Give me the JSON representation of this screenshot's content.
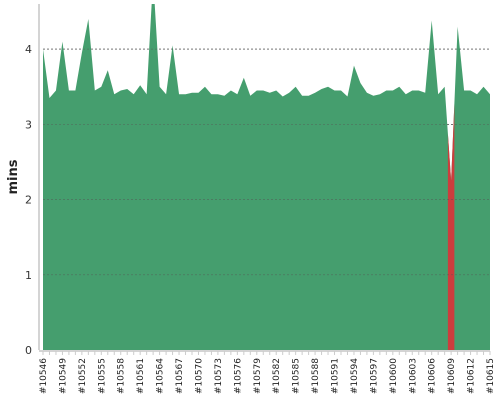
{
  "chart_data": {
    "type": "area",
    "ylabel": "mins",
    "xlabel": "",
    "title": "",
    "ylim": [
      0,
      4.6
    ],
    "y_ticks": [
      0,
      1,
      2,
      3,
      4
    ],
    "grid": "horizontal dashed",
    "build_start": 10546,
    "build_end": 10615,
    "x_tick_labels": [
      "#10546",
      "#10549",
      "#10552",
      "#10555",
      "#10558",
      "#10561",
      "#10564",
      "#10567",
      "#10570",
      "#10573",
      "#10576",
      "#10579",
      "#10582",
      "#10585",
      "#10588",
      "#10591",
      "#10594",
      "#10597",
      "#10600",
      "#10603",
      "#10606",
      "#10609",
      "#10612",
      "#10615"
    ],
    "values": [
      4.0,
      3.35,
      3.45,
      4.1,
      3.45,
      3.45,
      3.95,
      4.4,
      3.45,
      3.5,
      3.72,
      3.4,
      3.45,
      3.47,
      3.4,
      3.52,
      3.4,
      4.95,
      3.5,
      3.4,
      4.05,
      3.4,
      3.4,
      3.42,
      3.42,
      3.5,
      3.4,
      3.4,
      3.38,
      3.45,
      3.4,
      3.62,
      3.38,
      3.45,
      3.45,
      3.42,
      3.45,
      3.37,
      3.42,
      3.5,
      3.38,
      3.38,
      3.42,
      3.47,
      3.5,
      3.45,
      3.45,
      3.37,
      3.78,
      3.55,
      3.42,
      3.38,
      3.4,
      3.45,
      3.45,
      3.5,
      3.4,
      3.45,
      3.45,
      3.42,
      4.38,
      3.4,
      3.5,
      2.25,
      4.3,
      3.45,
      3.45,
      3.4,
      3.5,
      3.4
    ],
    "failed_builds": [
      10609
    ],
    "colors": {
      "success": "#459e6e",
      "failed": "#cc3d3d",
      "grid": "#555555",
      "axis": "#aaaaaa"
    }
  }
}
